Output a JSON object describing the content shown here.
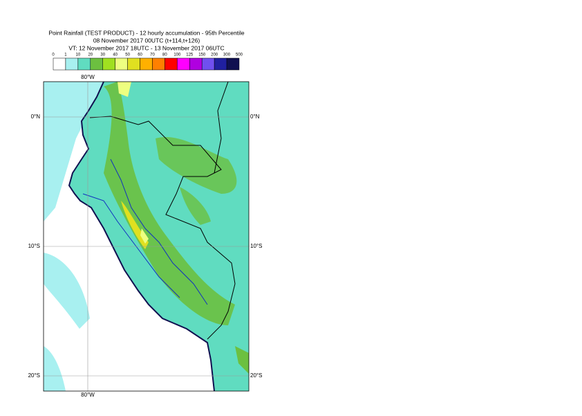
{
  "header": {
    "title": "Point Rainfall (TEST PRODUCT) - 12 hourly accumulation - 95th Percentile",
    "subtitle": "08 November 2017 00UTC (t+114,t+126)",
    "valid_time": "VT: 12 November 2017 18UTC - 13 November 2017 06UTC"
  },
  "legend": {
    "labels": [
      "0",
      "1",
      "10",
      "20",
      "30",
      "40",
      "50",
      "60",
      "70",
      "80",
      "100",
      "125",
      "150",
      "200",
      "300",
      "500"
    ],
    "colors": [
      "#ffffff",
      "#a8f0f0",
      "#60dcc0",
      "#6cc040",
      "#a0e020",
      "#eeff80",
      "#e0e020",
      "#ffb000",
      "#ff8000",
      "#ff0000",
      "#ff00ff",
      "#b000e0",
      "#7050f0",
      "#2020a0",
      "#101050"
    ]
  },
  "map": {
    "lon_top": "80°W",
    "lon_bottom": "80°W",
    "lat_left": [
      "0°N",
      "10°S",
      "20°S"
    ],
    "lat_right": [
      "0°N",
      "10°S",
      "20°S"
    ]
  }
}
